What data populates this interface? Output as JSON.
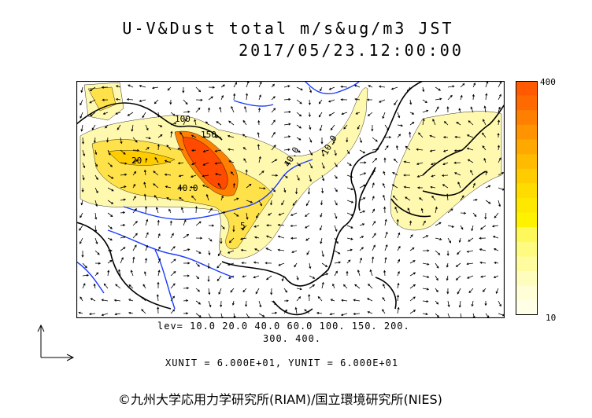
{
  "title": "U-V&Dust total m/s&ug/m3 JST",
  "datetime": "2017/05/23.12:00:00",
  "contour_labels": [
    "100",
    "150",
    "40.0",
    "40.0",
    "10.0",
    "20",
    "5"
  ],
  "levels_line1": "lev= 10.0 20.0 40.0 60.0 100. 150. 200.",
  "levels_line2": "300. 400.",
  "units_line": "XUNIT = 6.000E+01, YUNIT = 6.000E+01",
  "colorbar": {
    "max_label": "400",
    "min_label": "10",
    "colors": [
      "#ff5a00",
      "#ff6a00",
      "#ff7f00",
      "#ff9400",
      "#ffa800",
      "#ffbb00",
      "#ffcc00",
      "#ffdc00",
      "#ffe800",
      "#fff200",
      "#fff85a",
      "#fffa80",
      "#fffca0",
      "#fffdbe",
      "#fffed6",
      "#fffee6"
    ]
  },
  "copyright": "©九州大学応用力学研究所(RIAM)/国立環境研究所(NIES)",
  "colors": {
    "coast": "#000000",
    "river": "#1a3cff",
    "dust_low": "#fff9b0",
    "dust_mid": "#ffe14a",
    "dust_high": "#ff6a00",
    "dust_peak": "#ff4a00"
  }
}
